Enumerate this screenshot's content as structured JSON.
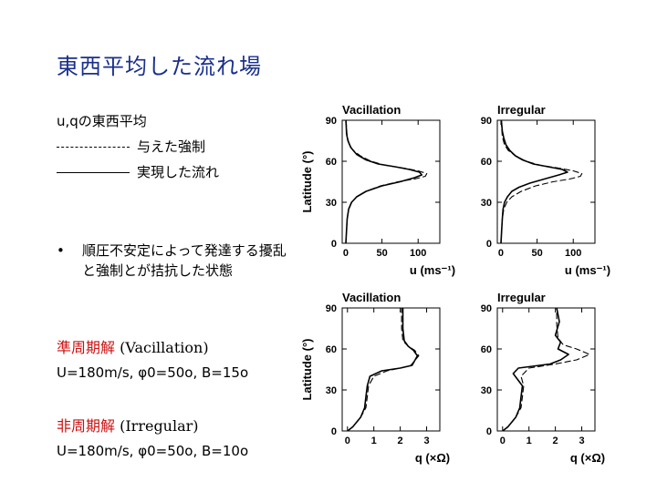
{
  "title": "東西平均した流れ場",
  "legend": {
    "heading": "u,qの東西平均",
    "dashed_label": "与えた強制",
    "solid_label": "実現した流れ"
  },
  "bullet": {
    "marker": "•",
    "text": "順圧不安定によって発達する擾乱と強制とが拮抗した状態"
  },
  "cases": [
    {
      "name_jp": "準周期解",
      "name_en": "(Vacillation)",
      "params": "U=180m/s, φ0=50o, B=15o"
    },
    {
      "name_jp": "非周期解",
      "name_en": "(Irregular)",
      "params": "U=180m/s, φ0=50o, B=10o"
    }
  ],
  "chart_data": [
    {
      "type": "line",
      "title": "Vacillation",
      "xlabel": "u (ms⁻¹)",
      "ylabel": "Latitude (°)",
      "xlim": [
        -5,
        130
      ],
      "ylim": [
        0,
        90
      ],
      "xticks": [
        0,
        50,
        100
      ],
      "yticks": [
        0,
        30,
        60,
        90
      ],
      "series": [
        {
          "style": "dashed",
          "x": [
            0,
            1,
            2,
            4,
            8,
            15,
            28,
            48,
            72,
            95,
            110,
            112,
            100,
            80,
            55,
            35,
            20,
            10,
            5,
            2,
            1,
            0.5,
            0.3
          ],
          "y": [
            0,
            10,
            18,
            25,
            30,
            34,
            38,
            42,
            45,
            47,
            49,
            51,
            53,
            55,
            57,
            60,
            64,
            68,
            72,
            78,
            84,
            88,
            90
          ]
        },
        {
          "style": "solid",
          "x": [
            0,
            1,
            2,
            4,
            8,
            15,
            28,
            50,
            75,
            95,
            105,
            102,
            88,
            68,
            45,
            28,
            15,
            7,
            3,
            1,
            0.5,
            0.2
          ],
          "y": [
            0,
            10,
            18,
            25,
            30,
            34,
            38,
            42,
            45,
            48,
            50,
            52,
            54,
            56,
            58,
            61,
            65,
            70,
            75,
            80,
            86,
            90
          ]
        }
      ]
    },
    {
      "type": "line",
      "title": "Irregular",
      "xlabel": "u (ms⁻¹)",
      "ylabel": "",
      "xlim": [
        -5,
        130
      ],
      "ylim": [
        0,
        90
      ],
      "xticks": [
        0,
        50,
        100
      ],
      "yticks": [
        0,
        30,
        60,
        90
      ],
      "series": [
        {
          "style": "dashed",
          "x": [
            0,
            1,
            2,
            4,
            8,
            15,
            28,
            48,
            72,
            95,
            110,
            112,
            100,
            80,
            55,
            35,
            20,
            10,
            5,
            2,
            1,
            0.5,
            0.3
          ],
          "y": [
            0,
            10,
            18,
            25,
            30,
            34,
            38,
            42,
            45,
            47,
            49,
            51,
            53,
            55,
            57,
            60,
            64,
            68,
            72,
            78,
            84,
            88,
            90
          ]
        },
        {
          "style": "solid",
          "x": [
            0,
            1,
            2,
            3,
            5,
            9,
            15,
            25,
            40,
            60,
            80,
            92,
            85,
            65,
            45,
            30,
            20,
            12,
            7,
            4,
            2,
            1,
            0.5
          ],
          "y": [
            0,
            10,
            18,
            25,
            30,
            34,
            38,
            41,
            44,
            47,
            50,
            52,
            54,
            56,
            58,
            61,
            64,
            68,
            72,
            77,
            82,
            87,
            90
          ]
        }
      ]
    },
    {
      "type": "line",
      "title": "Vacillation",
      "xlabel": "q (×Ω)",
      "ylabel": "Latitude (°)",
      "xlim": [
        -0.2,
        3.5
      ],
      "ylim": [
        0,
        90
      ],
      "xticks": [
        0,
        1,
        2,
        3
      ],
      "yticks": [
        0,
        30,
        60,
        90
      ],
      "series": [
        {
          "style": "dashed",
          "x": [
            0,
            0.2,
            0.5,
            0.7,
            0.75,
            0.8,
            1.0,
            1.5,
            2.0,
            2.4,
            2.7,
            2.55,
            2.3,
            2.1,
            2.05,
            2.05,
            2.05
          ],
          "y": [
            0,
            3,
            10,
            17,
            25,
            33,
            40,
            44,
            46,
            48,
            55,
            59,
            62,
            66,
            75,
            85,
            90
          ]
        },
        {
          "style": "solid",
          "x": [
            0,
            0.2,
            0.5,
            0.65,
            0.7,
            0.75,
            0.85,
            1.3,
            2.0,
            2.45,
            2.65,
            2.5,
            2.3,
            2.15,
            2.1,
            2.1,
            2.1
          ],
          "y": [
            0,
            3,
            10,
            17,
            25,
            33,
            40,
            44,
            46,
            48,
            55,
            59,
            62,
            66,
            75,
            85,
            90
          ]
        }
      ]
    },
    {
      "type": "line",
      "title": "Irregular",
      "xlabel": "q (×Ω)",
      "ylabel": "",
      "xlim": [
        -0.2,
        3.5
      ],
      "ylim": [
        0,
        90
      ],
      "xticks": [
        0,
        1,
        2,
        3
      ],
      "yticks": [
        0,
        30,
        60,
        90
      ],
      "series": [
        {
          "style": "dashed",
          "x": [
            0,
            0.2,
            0.5,
            0.7,
            0.75,
            0.8,
            0.7,
            1.0,
            2.0,
            2.8,
            3.3,
            2.8,
            2.3,
            2.1,
            2.05,
            2.05
          ],
          "y": [
            0,
            3,
            10,
            17,
            25,
            33,
            40,
            46,
            49,
            52,
            56,
            60,
            63,
            68,
            78,
            90
          ]
        },
        {
          "style": "solid",
          "x": [
            0,
            0.2,
            0.5,
            0.65,
            0.7,
            0.75,
            0.4,
            0.6,
            1.8,
            2.2,
            2.5,
            2.1,
            2.2,
            2.0,
            2.15,
            2.05
          ],
          "y": [
            0,
            3,
            10,
            17,
            25,
            33,
            42,
            46,
            49,
            52,
            56,
            60,
            65,
            70,
            80,
            90
          ]
        }
      ]
    }
  ]
}
